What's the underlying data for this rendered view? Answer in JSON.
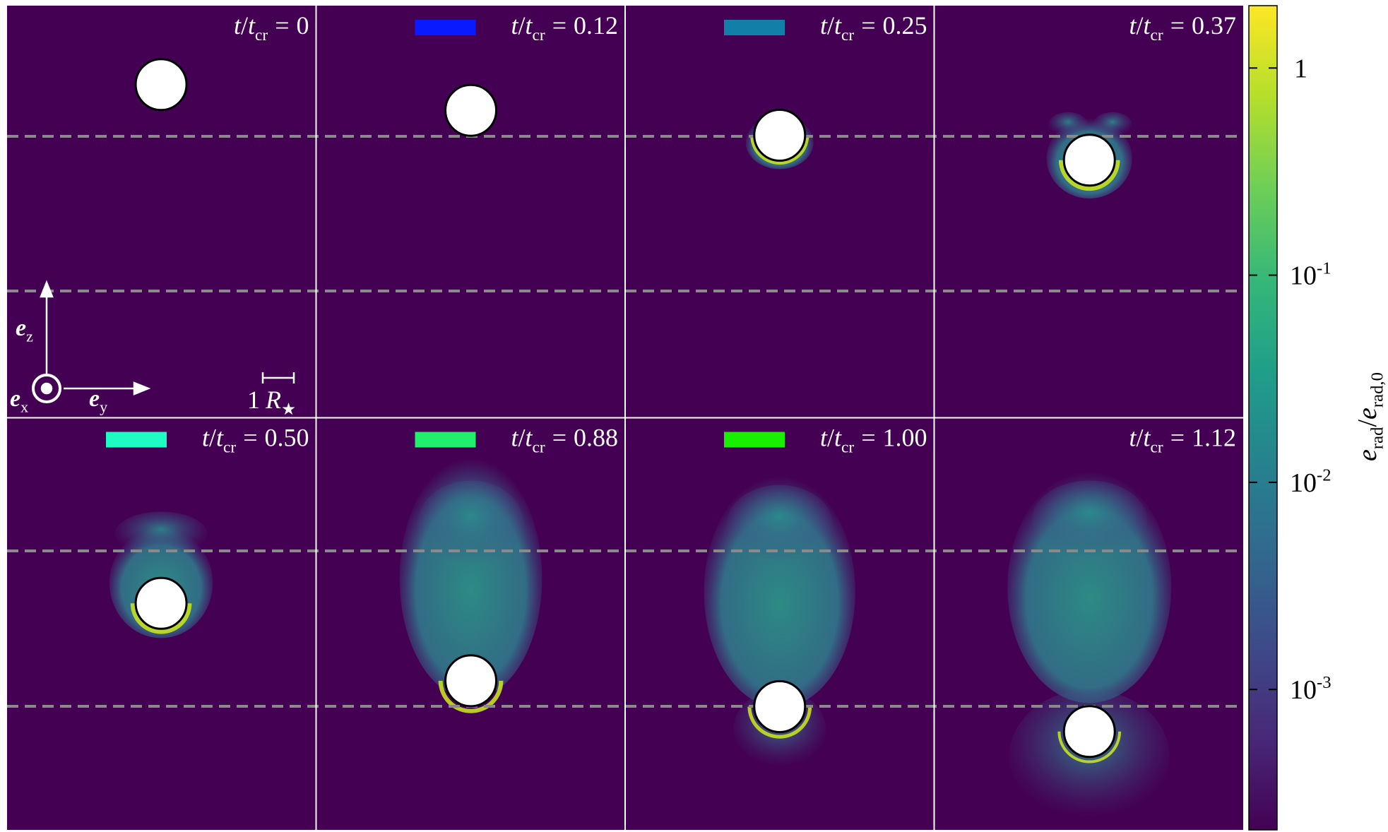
{
  "chart_data": {
    "type": "panel-grid",
    "panels": [
      {
        "time": "0"
      },
      {
        "time": "0.12",
        "swatch_color": "#0a1aff"
      },
      {
        "time": "0.25",
        "swatch_color": "#1180a8"
      },
      {
        "time": "0.37"
      },
      {
        "time": "0.50",
        "swatch_color": "#1ffcc3"
      },
      {
        "time": "0.88",
        "swatch_color": "#21f06c"
      },
      {
        "time": "1.00",
        "swatch_color": "#18f000"
      },
      {
        "time": "1.12"
      }
    ],
    "time_label": {
      "variable": "t",
      "slash": "/",
      "reference": "t",
      "reference_subscript": "cr",
      "equals": "="
    },
    "axes_key": {
      "z": {
        "symbol": "e",
        "subscript": "z"
      },
      "y": {
        "symbol": "e",
        "subscript": "y"
      },
      "x": {
        "symbol": "e",
        "subscript": "x"
      }
    },
    "scale_bar": {
      "number": "1",
      "symbol": "R",
      "subscript": "★"
    },
    "colorbar": {
      "scale": "log",
      "lim": [
        0.00021,
        2.0
      ],
      "ticks": [
        1,
        {
          "value": 0.1,
          "label": "10",
          "exponent": "-1"
        },
        {
          "value": 0.01,
          "label": "10",
          "exponent": "-2"
        },
        {
          "value": 0.001,
          "label": "10",
          "exponent": "-3"
        }
      ],
      "label": {
        "numerator": "e",
        "numerator_subscript": "rad",
        "slash": "/",
        "denominator": "e",
        "denominator_subscript": "rad,0"
      },
      "colormap": [
        "#440154",
        "#482878",
        "#3e4a89",
        "#31688e",
        "#26828e",
        "#1f9e89",
        "#35b779",
        "#6ece58",
        "#b5de2b",
        "#fde725"
      ]
    }
  }
}
